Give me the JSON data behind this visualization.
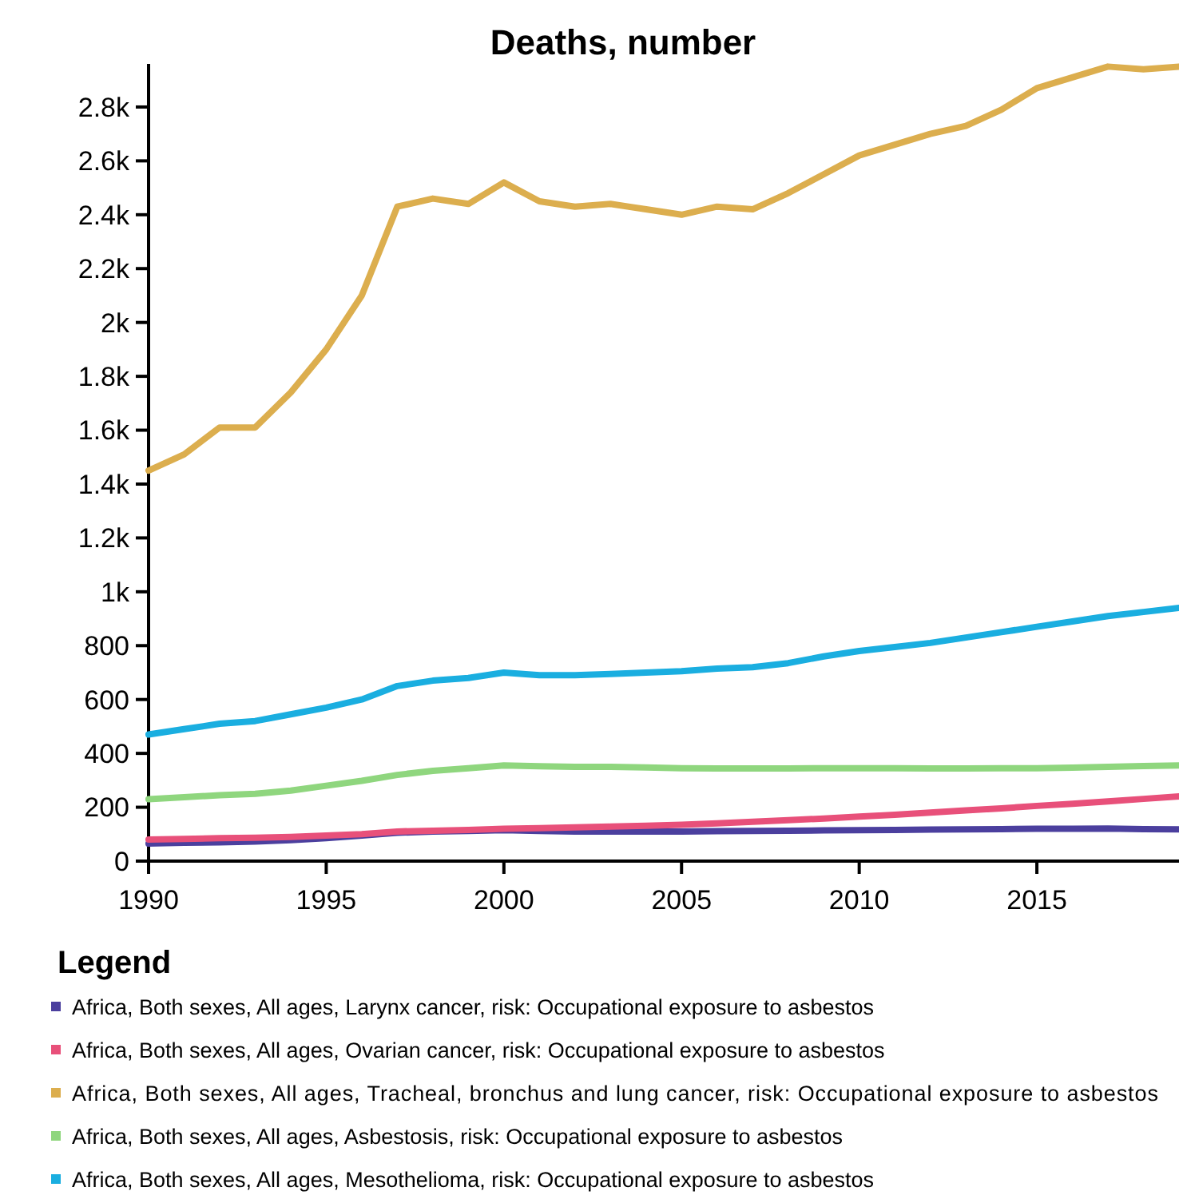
{
  "chart_data": {
    "type": "line",
    "title": "Deaths, number",
    "legend_title": "Legend",
    "legend": "bottom",
    "grid": false,
    "line_style": "solid",
    "x": [
      1990,
      1991,
      1992,
      1993,
      1994,
      1995,
      1996,
      1997,
      1998,
      1999,
      2000,
      2001,
      2002,
      2003,
      2004,
      2005,
      2006,
      2007,
      2008,
      2009,
      2010,
      2011,
      2012,
      2013,
      2014,
      2015,
      2016,
      2017,
      2018,
      2019
    ],
    "xlim": [
      1990,
      2019
    ],
    "xticks": [
      1990,
      1995,
      2000,
      2005,
      2010,
      2015
    ],
    "ylim": [
      0,
      2960
    ],
    "yticks": [
      0,
      200,
      400,
      600,
      800,
      {
        "value": 1000,
        "label": "1k"
      },
      {
        "value": 1200,
        "label": "1.2k"
      },
      {
        "value": 1400,
        "label": "1.4k"
      },
      {
        "value": 1600,
        "label": "1.6k"
      },
      {
        "value": 1800,
        "label": "1.8k"
      },
      {
        "value": 2000,
        "label": "2k"
      },
      {
        "value": 2200,
        "label": "2.2k"
      },
      {
        "value": 2400,
        "label": "2.4k"
      },
      {
        "value": 2600,
        "label": "2.6k"
      },
      {
        "value": 2800,
        "label": "2.8k"
      }
    ],
    "series": [
      {
        "name": "Africa, Both sexes, All ages, Larynx cancer, risk: Occupational exposure to asbestos",
        "color": "#4b3f9e",
        "values": [
          65,
          68,
          70,
          73,
          78,
          85,
          95,
          105,
          110,
          112,
          115,
          112,
          110,
          110,
          110,
          110,
          111,
          112,
          113,
          114,
          115,
          116,
          117,
          118,
          119,
          120,
          120,
          121,
          119,
          118
        ]
      },
      {
        "name": "Africa, Both sexes, All ages, Ovarian cancer, risk: Occupational exposure to asbestos",
        "color": "#e8507a",
        "values": [
          80,
          82,
          85,
          87,
          90,
          95,
          100,
          110,
          113,
          116,
          120,
          122,
          125,
          128,
          131,
          135,
          140,
          146,
          152,
          158,
          165,
          172,
          180,
          188,
          196,
          205,
          213,
          222,
          231,
          240
        ]
      },
      {
        "name": "Africa, Both sexes, All ages, Tracheal, bronchus and lung cancer, risk: Occupational exposure to asbestos",
        "color": "#dcae4e",
        "values": [
          1450,
          1510,
          1610,
          1610,
          1740,
          1900,
          2100,
          2430,
          2460,
          2440,
          2520,
          2450,
          2430,
          2440,
          2420,
          2400,
          2430,
          2420,
          2480,
          2550,
          2620,
          2660,
          2700,
          2730,
          2790,
          2870,
          2910,
          2950,
          2940,
          2950
        ]
      },
      {
        "name": "Africa, Both sexes, All ages, Asbestosis, risk: Occupational exposure to asbestos",
        "color": "#8fd67e",
        "values": [
          230,
          237,
          245,
          250,
          262,
          280,
          298,
          320,
          335,
          345,
          355,
          352,
          350,
          350,
          348,
          345,
          344,
          344,
          344,
          345,
          345,
          345,
          344,
          344,
          345,
          345,
          347,
          350,
          353,
          355
        ]
      },
      {
        "name": "Africa, Both sexes, All ages, Mesothelioma, risk: Occupational exposure to asbestos",
        "color": "#1aaee0",
        "values": [
          470,
          490,
          510,
          520,
          545,
          570,
          600,
          650,
          670,
          680,
          700,
          690,
          690,
          695,
          700,
          705,
          715,
          720,
          735,
          760,
          780,
          795,
          810,
          830,
          850,
          870,
          890,
          910,
          925,
          940
        ]
      }
    ]
  }
}
